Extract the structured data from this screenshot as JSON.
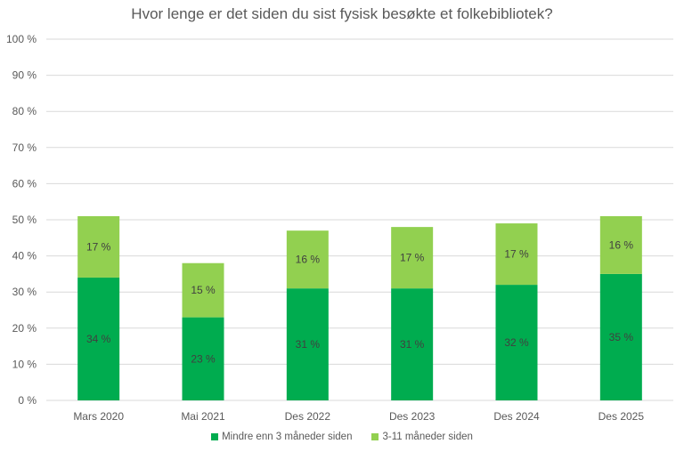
{
  "chart_data": {
    "type": "bar",
    "stacked": true,
    "title": "Hvor lenge er det siden du sist fysisk besøkte et folkebibliotek?",
    "xlabel": "",
    "ylabel": "",
    "categories": [
      "Mars 2020",
      "Mai 2021",
      "Des 2022",
      "Des 2023",
      "Des 2024",
      "Des 2025"
    ],
    "series": [
      {
        "name": "Mindre enn 3 måneder siden",
        "color": "#00ac4f",
        "values": [
          34,
          23,
          31,
          31,
          32,
          35
        ]
      },
      {
        "name": "3-11 måneder siden",
        "color": "#92d050",
        "values": [
          17,
          15,
          16,
          17,
          17,
          16
        ]
      }
    ],
    "ylim": [
      0,
      100
    ],
    "yticks": [
      0,
      10,
      20,
      30,
      40,
      50,
      60,
      70,
      80,
      90,
      100
    ],
    "ytick_suffix": " %",
    "data_label_suffix": " %",
    "grid": true,
    "legend": "bottom"
  }
}
